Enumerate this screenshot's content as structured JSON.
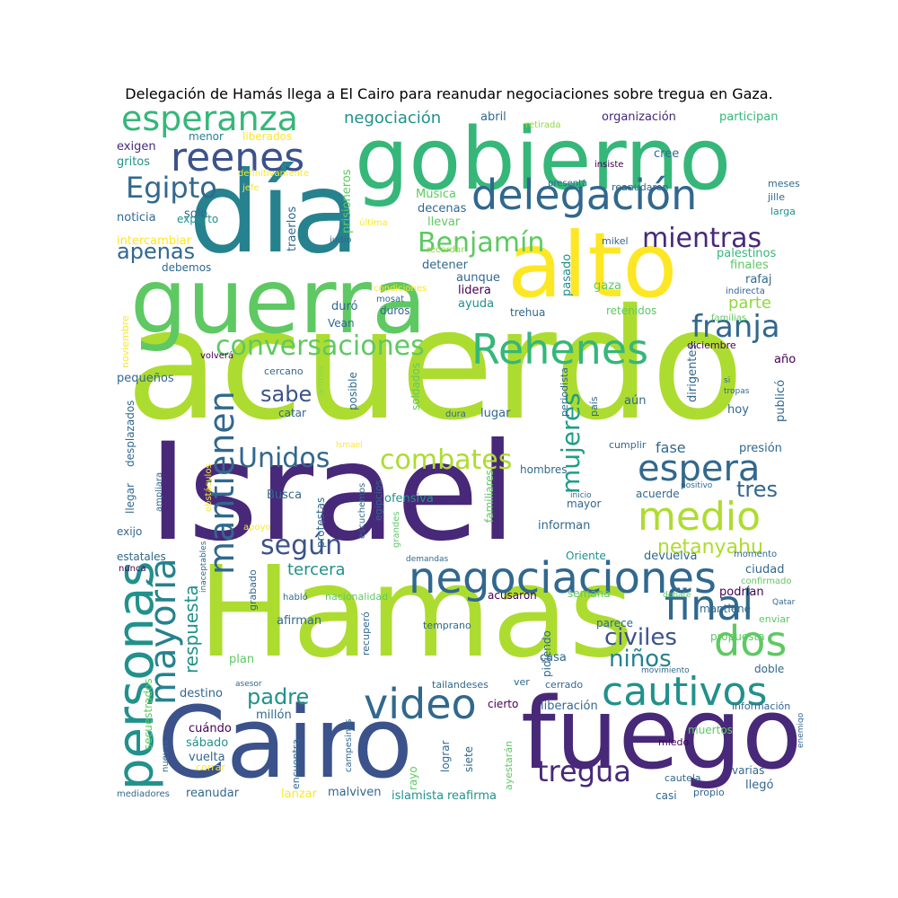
{
  "title": "Delegación de Hamás llega a El Cairo para reanudar negociaciones sobre tregua en Gaza.",
  "palette": [
    "#440154",
    "#3b528b",
    "#21918c",
    "#5ec962",
    "#fde725",
    "#31688e",
    "#35b779",
    "#90d743",
    "#482878",
    "#26828e",
    "#addc30",
    "#1f9e89"
  ],
  "words": [
    {
      "text": "acuerdo",
      "weight": 100,
      "color": "#addc30"
    },
    {
      "text": "Israel",
      "weight": 92,
      "color": "#482878"
    },
    {
      "text": "Hamas",
      "weight": 88,
      "color": "#addc30"
    },
    {
      "text": "guerra",
      "weight": 70,
      "color": "#5ec962"
    },
    {
      "text": "día",
      "weight": 72,
      "color": "#26828e"
    },
    {
      "text": "gobierno",
      "weight": 66,
      "color": "#35b779"
    },
    {
      "text": "Cairo",
      "weight": 72,
      "color": "#3b528b"
    },
    {
      "text": "fuego",
      "weight": 70,
      "color": "#482878"
    },
    {
      "text": "alto",
      "weight": 62,
      "color": "#fde725"
    },
    {
      "text": "personas",
      "weight": 40,
      "color": "#21918c"
    },
    {
      "text": "negociaciones",
      "weight": 34,
      "color": "#31688e"
    },
    {
      "text": "delegación",
      "weight": 33,
      "color": "#31688e"
    },
    {
      "text": "esperanza",
      "weight": 32,
      "color": "#35b779"
    },
    {
      "text": "reenes",
      "weight": 32,
      "color": "#3b528b"
    },
    {
      "text": "Rehenes",
      "weight": 32,
      "color": "#35b779"
    },
    {
      "text": "video",
      "weight": 32,
      "color": "#31688e"
    },
    {
      "text": "cautivos",
      "weight": 30,
      "color": "#21918c"
    },
    {
      "text": "medio",
      "weight": 31,
      "color": "#addc30"
    },
    {
      "text": "dos",
      "weight": 30,
      "color": "#5ec962"
    },
    {
      "text": "final",
      "weight": 30,
      "color": "#31688e"
    },
    {
      "text": "mayoría",
      "weight": 28,
      "color": "#26828e"
    },
    {
      "text": "mantienen",
      "weight": 27,
      "color": "#31688e"
    },
    {
      "text": "espera",
      "weight": 27,
      "color": "#31688e"
    },
    {
      "text": "tregua",
      "weight": 24,
      "color": "#482878"
    },
    {
      "text": "conversaciones",
      "weight": 23,
      "color": "#5ec962"
    },
    {
      "text": "Egipto",
      "weight": 23,
      "color": "#31688e"
    },
    {
      "text": "Unidos",
      "weight": 23,
      "color": "#31688e"
    },
    {
      "text": "combates",
      "weight": 23,
      "color": "#addc30"
    },
    {
      "text": "franja",
      "weight": 23,
      "color": "#31688e"
    },
    {
      "text": "mientras",
      "weight": 22,
      "color": "#482878"
    },
    {
      "text": "Benjamín",
      "weight": 22,
      "color": "#5ec962"
    },
    {
      "text": "mujeres",
      "weight": 22,
      "color": "#1f9e89"
    },
    {
      "text": "según",
      "weight": 21,
      "color": "#3b528b"
    },
    {
      "text": "niños",
      "weight": 20,
      "color": "#26828e"
    },
    {
      "text": "civiles",
      "weight": 19,
      "color": "#3b528b"
    },
    {
      "text": "sabe",
      "weight": 18,
      "color": "#3b528b"
    },
    {
      "text": "apenas",
      "weight": 18,
      "color": "#31688e"
    },
    {
      "text": "padre",
      "weight": 18,
      "color": "#21918c"
    },
    {
      "text": "tres",
      "weight": 18,
      "color": "#31688e"
    },
    {
      "text": "netanyahu",
      "weight": 17,
      "color": "#addc30"
    },
    {
      "text": "respuesta",
      "weight": 16,
      "color": "#21918c"
    },
    {
      "text": "negociación",
      "weight": 16,
      "color": "#21918c"
    },
    {
      "text": "parte",
      "weight": 15,
      "color": "#90d743"
    },
    {
      "text": "tercera",
      "weight": 15,
      "color": "#21918c"
    },
    {
      "text": "fase",
      "weight": 14,
      "color": "#31688e"
    },
    {
      "text": "exigen",
      "weight": 12,
      "color": "#482878"
    },
    {
      "text": "gritos",
      "weight": 12,
      "color": "#21918c"
    },
    {
      "text": "solo",
      "weight": 12,
      "color": "#31688e"
    },
    {
      "text": "noticia",
      "weight": 12,
      "color": "#31688e"
    },
    {
      "text": "experto",
      "weight": 11,
      "color": "#21918c"
    },
    {
      "text": "intercambiar",
      "weight": 12,
      "color": "#fde725"
    },
    {
      "text": "debemos",
      "weight": 11,
      "color": "#31688e"
    },
    {
      "text": "menor",
      "weight": 11,
      "color": "#26828e"
    },
    {
      "text": "liberados",
      "weight": 11,
      "color": "#fde725"
    },
    {
      "text": "prisioneros",
      "weight": 12,
      "color": "#5ec962"
    },
    {
      "text": "traerlos",
      "weight": 12,
      "color": "#31688e"
    },
    {
      "text": "abril",
      "weight": 12,
      "color": "#31688e"
    },
    {
      "text": "retirada",
      "weight": 9,
      "color": "#90d743"
    },
    {
      "text": "organización",
      "weight": 12,
      "color": "#482878"
    },
    {
      "text": "participan",
      "weight": 12,
      "color": "#35b779"
    },
    {
      "text": "cree",
      "weight": 12,
      "color": "#31688e"
    },
    {
      "text": "insiste",
      "weight": 9,
      "color": "#440154"
    },
    {
      "text": "presenta",
      "weight": 9,
      "color": "#31688e"
    },
    {
      "text": "reanudaron",
      "weight": 10,
      "color": "#31688e"
    },
    {
      "text": "meses",
      "weight": 10,
      "color": "#31688e"
    },
    {
      "text": "jille",
      "weight": 9,
      "color": "#31688e"
    },
    {
      "text": "larga",
      "weight": 9,
      "color": "#21918c"
    },
    {
      "text": "definitivamente",
      "weight": 8,
      "color": "#fde725"
    },
    {
      "text": "jefe",
      "weight": 8,
      "color": "#fde725"
    },
    {
      "text": "Música",
      "weight": 12,
      "color": "#5ec962"
    },
    {
      "text": "decenas",
      "weight": 12,
      "color": "#31688e"
    },
    {
      "text": "llevar",
      "weight": 12,
      "color": "#5ec962"
    },
    {
      "text": "última",
      "weight": 8,
      "color": "#fde725"
    },
    {
      "text": "judío",
      "weight": 8,
      "color": "#31688e"
    },
    {
      "text": "recordar",
      "weight": 8,
      "color": "#90d743"
    },
    {
      "text": "mikel",
      "weight": 9,
      "color": "#31688e"
    },
    {
      "text": "palestinos",
      "weight": 12,
      "color": "#35b779"
    },
    {
      "text": "finales",
      "weight": 12,
      "color": "#5ec962"
    },
    {
      "text": "rafaj",
      "weight": 12,
      "color": "#31688e"
    },
    {
      "text": "indirecta",
      "weight": 9,
      "color": "#31688e"
    },
    {
      "text": "pasado",
      "weight": 12,
      "color": "#21918c"
    },
    {
      "text": "gaza",
      "weight": 12,
      "color": "#5ec962"
    },
    {
      "text": "detener",
      "weight": 12,
      "color": "#31688e"
    },
    {
      "text": "aunque",
      "weight": 12,
      "color": "#31688e"
    },
    {
      "text": "lidera",
      "weight": 12,
      "color": "#440154"
    },
    {
      "text": "condiciones",
      "weight": 8,
      "color": "#fde725"
    },
    {
      "text": "mosat",
      "weight": 8,
      "color": "#31688e"
    },
    {
      "text": "ayuda",
      "weight": 12,
      "color": "#21918c"
    },
    {
      "text": "duró",
      "weight": 12,
      "color": "#31688e"
    },
    {
      "text": "duros",
      "weight": 11,
      "color": "#31688e"
    },
    {
      "text": "Vean",
      "weight": 11,
      "color": "#31688e"
    },
    {
      "text": "trehua",
      "weight": 11,
      "color": "#31688e"
    },
    {
      "text": "retenidos",
      "weight": 11,
      "color": "#5ec962"
    },
    {
      "text": "familias",
      "weight": 9,
      "color": "#5ec962"
    },
    {
      "text": "diciembre",
      "weight": 10,
      "color": "#440154"
    },
    {
      "text": "noviembre",
      "weight": 10,
      "color": "#fde725"
    },
    {
      "text": "volverá",
      "weight": 8,
      "color": "#440154"
    },
    {
      "text": "pequeños",
      "weight": 12,
      "color": "#31688e"
    },
    {
      "text": "cercano",
      "weight": 10,
      "color": "#31688e"
    },
    {
      "text": "ambas",
      "weight": 8,
      "color": "#90d743"
    },
    {
      "text": "posible",
      "weight": 11,
      "color": "#31688e"
    },
    {
      "text": "catar",
      "weight": 11,
      "color": "#31688e"
    },
    {
      "text": "soldados",
      "weight": 11,
      "color": "#5ec962"
    },
    {
      "text": "dura",
      "weight": 9,
      "color": "#31688e"
    },
    {
      "text": "lugar",
      "weight": 12,
      "color": "#31688e"
    },
    {
      "text": "periodista",
      "weight": 10,
      "color": "#31688e"
    },
    {
      "text": "país",
      "weight": 10,
      "color": "#31688e"
    },
    {
      "text": "aún",
      "weight": 12,
      "color": "#31688e"
    },
    {
      "text": "dirigentes",
      "weight": 12,
      "color": "#31688e"
    },
    {
      "text": "año",
      "weight": 12,
      "color": "#440154"
    },
    {
      "text": "si",
      "weight": 8,
      "color": "#31688e"
    },
    {
      "text": "tropas",
      "weight": 8,
      "color": "#31688e"
    },
    {
      "text": "publicó",
      "weight": 12,
      "color": "#31688e"
    },
    {
      "text": "hoy",
      "weight": 12,
      "color": "#31688e"
    },
    {
      "text": "presión",
      "weight": 12,
      "color": "#31688e"
    },
    {
      "text": "cumplir",
      "weight": 10,
      "color": "#31688e"
    },
    {
      "text": "hombres",
      "weight": 11,
      "color": "#31688e"
    },
    {
      "text": "Ismael",
      "weight": 8,
      "color": "#fde725"
    },
    {
      "text": "desplazados",
      "weight": 11,
      "color": "#31688e"
    },
    {
      "text": "llegar",
      "weight": 11,
      "color": "#31688e"
    },
    {
      "text": "ampliara",
      "weight": 9,
      "color": "#31688e"
    },
    {
      "text": "obstáculos",
      "weight": 9,
      "color": "#fde725"
    },
    {
      "text": "Busca",
      "weight": 12,
      "color": "#31688e"
    },
    {
      "text": "protestas",
      "weight": 12,
      "color": "#31688e"
    },
    {
      "text": "escuchemos",
      "weight": 9,
      "color": "#31688e"
    },
    {
      "text": "egipcios",
      "weight": 10,
      "color": "#31688e"
    },
    {
      "text": "grandes",
      "weight": 9,
      "color": "#5ec962"
    },
    {
      "text": "ofensiva",
      "weight": 12,
      "color": "#21918c"
    },
    {
      "text": "familiares",
      "weight": 11,
      "color": "#5ec962"
    },
    {
      "text": "positivo",
      "weight": 8,
      "color": "#31688e"
    },
    {
      "text": "inicio",
      "weight": 8,
      "color": "#31688e"
    },
    {
      "text": "acuerde",
      "weight": 11,
      "color": "#31688e"
    },
    {
      "text": "mayor",
      "weight": 11,
      "color": "#31688e"
    },
    {
      "text": "exijo",
      "weight": 11,
      "color": "#31688e"
    },
    {
      "text": "apoyo",
      "weight": 9,
      "color": "#fde725"
    },
    {
      "text": "estatales",
      "weight": 11,
      "color": "#31688e"
    },
    {
      "text": "nunca",
      "weight": 9,
      "color": "#440154"
    },
    {
      "text": "inaceptables",
      "weight": 8,
      "color": "#31688e"
    },
    {
      "text": "grabado",
      "weight": 10,
      "color": "#31688e"
    },
    {
      "text": "habló",
      "weight": 9,
      "color": "#31688e"
    },
    {
      "text": "nacionalidad",
      "weight": 10,
      "color": "#5ec962"
    },
    {
      "text": "demandas",
      "weight": 8,
      "color": "#31688e"
    },
    {
      "text": "informan",
      "weight": 12,
      "color": "#31688e"
    },
    {
      "text": "Oriente",
      "weight": 11,
      "color": "#21918c"
    },
    {
      "text": "devuelva",
      "weight": 12,
      "color": "#31688e"
    },
    {
      "text": "momento",
      "weight": 9,
      "color": "#31688e"
    },
    {
      "text": "ciudad",
      "weight": 12,
      "color": "#31688e"
    },
    {
      "text": "confirmado",
      "weight": 9,
      "color": "#5ec962"
    },
    {
      "text": "podrían",
      "weight": 12,
      "color": "#440154"
    },
    {
      "text": "Qatar",
      "weight": 8,
      "color": "#31688e"
    },
    {
      "text": "acusaron",
      "weight": 11,
      "color": "#440154"
    },
    {
      "text": "semana",
      "weight": 11,
      "color": "#5ec962"
    },
    {
      "text": "debate",
      "weight": 8,
      "color": "#5ec962"
    },
    {
      "text": "mantiene",
      "weight": 12,
      "color": "#31688e"
    },
    {
      "text": "enviar",
      "weight": 10,
      "color": "#5ec962"
    },
    {
      "text": "afirman",
      "weight": 12,
      "color": "#31688e"
    },
    {
      "text": "recuperó",
      "weight": 10,
      "color": "#31688e"
    },
    {
      "text": "temprano",
      "weight": 10,
      "color": "#31688e"
    },
    {
      "text": "parece",
      "weight": 11,
      "color": "#31688e"
    },
    {
      "text": "pidiendo",
      "weight": 11,
      "color": "#31688e"
    },
    {
      "text": "propuesta",
      "weight": 12,
      "color": "#5ec962"
    },
    {
      "text": "plan",
      "weight": 12,
      "color": "#5ec962"
    },
    {
      "text": "casa",
      "weight": 12,
      "color": "#31688e"
    },
    {
      "text": "doble",
      "weight": 12,
      "color": "#31688e"
    },
    {
      "text": "movimiento",
      "weight": 8,
      "color": "#31688e"
    },
    {
      "text": "asesor",
      "weight": 8,
      "color": "#31688e"
    },
    {
      "text": "secuestrados",
      "weight": 12,
      "color": "#5ec962"
    },
    {
      "text": "destino",
      "weight": 12,
      "color": "#31688e"
    },
    {
      "text": "millón",
      "weight": 12,
      "color": "#31688e"
    },
    {
      "text": "tailandeses",
      "weight": 11,
      "color": "#31688e"
    },
    {
      "text": "ver",
      "weight": 11,
      "color": "#31688e"
    },
    {
      "text": "cerrado",
      "weight": 10,
      "color": "#31688e"
    },
    {
      "text": "muertos",
      "weight": 12,
      "color": "#5ec962"
    },
    {
      "text": "información",
      "weight": 11,
      "color": "#31688e"
    },
    {
      "text": "liberación",
      "weight": 12,
      "color": "#31688e"
    },
    {
      "text": "cierto",
      "weight": 11,
      "color": "#440154"
    },
    {
      "text": "cuándo",
      "weight": 12,
      "color": "#440154"
    },
    {
      "text": "sábado",
      "weight": 12,
      "color": "#21918c"
    },
    {
      "text": "vuelta",
      "weight": 12,
      "color": "#31688e"
    },
    {
      "text": "cerrar",
      "weight": 10,
      "color": "#fde725"
    },
    {
      "text": "nuevas",
      "weight": 9,
      "color": "#31688e"
    },
    {
      "text": "mediadores",
      "weight": 9,
      "color": "#31688e"
    },
    {
      "text": "reanudar",
      "weight": 12,
      "color": "#31688e"
    },
    {
      "text": "campesinos",
      "weight": 9,
      "color": "#31688e"
    },
    {
      "text": "encuentra",
      "weight": 10,
      "color": "#31688e"
    },
    {
      "text": "rayo",
      "weight": 11,
      "color": "#5ec962"
    },
    {
      "text": "siete",
      "weight": 11,
      "color": "#31688e"
    },
    {
      "text": "lograr",
      "weight": 11,
      "color": "#31688e"
    },
    {
      "text": "ayestarán",
      "weight": 10,
      "color": "#5ec962"
    },
    {
      "text": "miedo",
      "weight": 10,
      "color": "#440154"
    },
    {
      "text": "enemigo",
      "weight": 8,
      "color": "#31688e"
    },
    {
      "text": "varias",
      "weight": 11,
      "color": "#31688e"
    },
    {
      "text": "lanzar",
      "weight": 12,
      "color": "#fde725"
    },
    {
      "text": "malviven",
      "weight": 12,
      "color": "#31688e"
    },
    {
      "text": "islamista",
      "weight": 12,
      "color": "#21918c"
    },
    {
      "text": "reafirma",
      "weight": 12,
      "color": "#21918c"
    },
    {
      "text": "casi",
      "weight": 11,
      "color": "#31688e"
    },
    {
      "text": "cautela",
      "weight": 10,
      "color": "#31688e"
    },
    {
      "text": "propio",
      "weight": 9,
      "color": "#31688e"
    },
    {
      "text": "llegó",
      "weight": 12,
      "color": "#31688e"
    }
  ]
}
